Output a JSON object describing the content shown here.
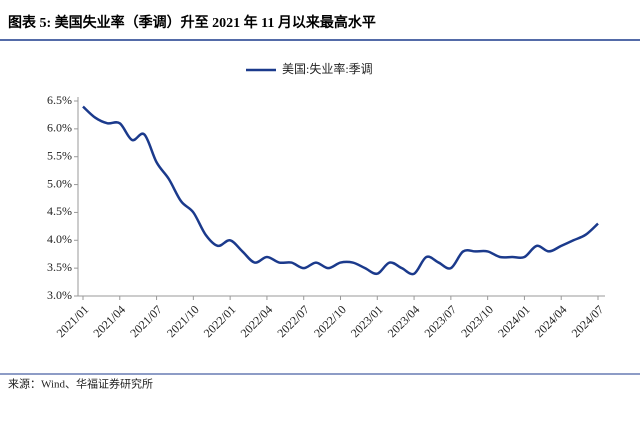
{
  "chart_data": {
    "type": "line",
    "title": "图表 5:  美国失业率（季调）升至 2021 年 11 月以来最高水平",
    "source": "来源：Wind、华福证券研究所",
    "categories": [
      "2021/01",
      null,
      null,
      "2021/04",
      null,
      null,
      "2021/07",
      null,
      null,
      "2021/10",
      null,
      null,
      "2022/01",
      null,
      null,
      "2022/04",
      null,
      null,
      "2022/07",
      null,
      null,
      "2022/10",
      null,
      null,
      "2023/01",
      null,
      null,
      "2023/04",
      null,
      null,
      "2023/07",
      null,
      null,
      "2023/10",
      null,
      null,
      "2024/01",
      null,
      null,
      "2024/04",
      null,
      null,
      "2024/07"
    ],
    "series": [
      {
        "name": "美国:失业率:季调",
        "color": "#1b3a8c",
        "values": [
          6.4,
          6.2,
          6.1,
          6.1,
          5.8,
          5.9,
          5.4,
          5.1,
          4.7,
          4.5,
          4.1,
          3.9,
          4.0,
          3.8,
          3.6,
          3.7,
          3.6,
          3.6,
          3.5,
          3.6,
          3.5,
          3.6,
          3.6,
          3.5,
          3.4,
          3.6,
          3.5,
          3.4,
          3.7,
          3.6,
          3.5,
          3.8,
          3.8,
          3.8,
          3.7,
          3.7,
          3.7,
          3.9,
          3.8,
          3.9,
          4.0,
          4.1,
          4.3
        ]
      }
    ],
    "ylim": [
      3.0,
      6.5
    ],
    "yticks": [
      {
        "value": 3.0,
        "label": "3.0%"
      },
      {
        "value": 3.5,
        "label": "3.5%"
      },
      {
        "value": 4.0,
        "label": "4.0%"
      },
      {
        "value": 4.5,
        "label": "4.5%"
      },
      {
        "value": 5.0,
        "label": "5.0%"
      },
      {
        "value": 5.5,
        "label": "5.5%"
      },
      {
        "value": 6.0,
        "label": "6.0%"
      },
      {
        "value": 6.5,
        "label": "6.5%"
      }
    ],
    "legend": "top"
  }
}
